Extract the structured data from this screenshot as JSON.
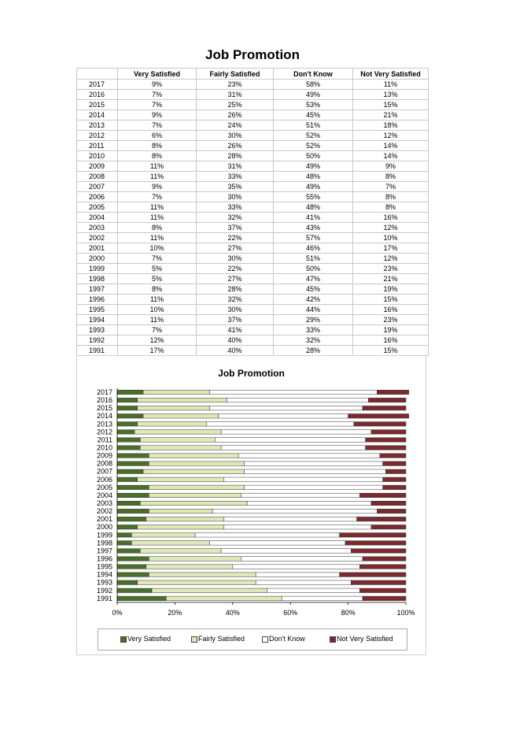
{
  "page_title": "Job Promotion",
  "table": {
    "headers": [
      "",
      "Very Satisfied",
      "Fairly Satisfied",
      "Don't Know",
      "Not Very Satisfied"
    ],
    "rows": [
      [
        "2017",
        "9%",
        "23%",
        "58%",
        "11%"
      ],
      [
        "2016",
        "7%",
        "31%",
        "49%",
        "13%"
      ],
      [
        "2015",
        "7%",
        "25%",
        "53%",
        "15%"
      ],
      [
        "2014",
        "9%",
        "26%",
        "45%",
        "21%"
      ],
      [
        "2013",
        "7%",
        "24%",
        "51%",
        "18%"
      ],
      [
        "2012",
        "6%",
        "30%",
        "52%",
        "12%"
      ],
      [
        "2011",
        "8%",
        "26%",
        "52%",
        "14%"
      ],
      [
        "2010",
        "8%",
        "28%",
        "50%",
        "14%"
      ],
      [
        "2009",
        "11%",
        "31%",
        "49%",
        "9%"
      ],
      [
        "2008",
        "11%",
        "33%",
        "48%",
        "8%"
      ],
      [
        "2007",
        "9%",
        "35%",
        "49%",
        "7%"
      ],
      [
        "2006",
        "7%",
        "30%",
        "55%",
        "8%"
      ],
      [
        "2005",
        "11%",
        "33%",
        "48%",
        "8%"
      ],
      [
        "2004",
        "11%",
        "32%",
        "41%",
        "16%"
      ],
      [
        "2003",
        "8%",
        "37%",
        "43%",
        "12%"
      ],
      [
        "2002",
        "11%",
        "22%",
        "57%",
        "10%"
      ],
      [
        "2001",
        "10%",
        "27%",
        "46%",
        "17%"
      ],
      [
        "2000",
        "7%",
        "30%",
        "51%",
        "12%"
      ],
      [
        "1999",
        "5%",
        "22%",
        "50%",
        "23%"
      ],
      [
        "1998",
        "5%",
        "27%",
        "47%",
        "21%"
      ],
      [
        "1997",
        "8%",
        "28%",
        "45%",
        "19%"
      ],
      [
        "1996",
        "11%",
        "32%",
        "42%",
        "15%"
      ],
      [
        "1995",
        "10%",
        "30%",
        "44%",
        "16%"
      ],
      [
        "1994",
        "11%",
        "37%",
        "29%",
        "23%"
      ],
      [
        "1993",
        "7%",
        "41%",
        "33%",
        "19%"
      ],
      [
        "1992",
        "12%",
        "40%",
        "32%",
        "16%"
      ],
      [
        "1991",
        "17%",
        "40%",
        "28%",
        "15%"
      ]
    ]
  },
  "chart_data": {
    "type": "bar",
    "orientation": "horizontal",
    "stacked": "percent",
    "title": "Job Promotion",
    "categories": [
      "2017",
      "2016",
      "2015",
      "2014",
      "2013",
      "2012",
      "2011",
      "2010",
      "2009",
      "2008",
      "2007",
      "2006",
      "2005",
      "2004",
      "2003",
      "2002",
      "2001",
      "2000",
      "1999",
      "1998",
      "1997",
      "1996",
      "1995",
      "1994",
      "1993",
      "1992",
      "1991"
    ],
    "series": [
      {
        "name": "Very Satisfied",
        "color": "#4a6f2a",
        "values": [
          9,
          7,
          7,
          9,
          7,
          6,
          8,
          8,
          11,
          11,
          9,
          7,
          11,
          11,
          8,
          11,
          10,
          7,
          5,
          5,
          8,
          11,
          10,
          11,
          7,
          12,
          17
        ]
      },
      {
        "name": "Fairly Satisfied",
        "color": "#dfe8b8",
        "values": [
          23,
          31,
          25,
          26,
          24,
          30,
          26,
          28,
          31,
          33,
          35,
          30,
          33,
          32,
          37,
          22,
          27,
          30,
          22,
          27,
          28,
          32,
          30,
          37,
          41,
          40,
          40
        ]
      },
      {
        "name": "Don't Know",
        "color": "#ffffff",
        "values": [
          58,
          49,
          53,
          45,
          51,
          52,
          52,
          50,
          49,
          48,
          49,
          55,
          48,
          41,
          43,
          57,
          46,
          51,
          50,
          47,
          45,
          42,
          44,
          29,
          33,
          32,
          28
        ]
      },
      {
        "name": "Not Very Satisfied",
        "color": "#7b2a2e",
        "values": [
          11,
          13,
          15,
          21,
          18,
          12,
          14,
          14,
          9,
          8,
          7,
          8,
          8,
          16,
          12,
          10,
          17,
          12,
          23,
          21,
          19,
          15,
          16,
          23,
          19,
          16,
          15
        ]
      }
    ],
    "x_ticks": [
      "0%",
      "20%",
      "40%",
      "60%",
      "80%",
      "100%"
    ],
    "xlim": [
      0,
      100
    ],
    "grid": false,
    "legend_position": "bottom"
  }
}
